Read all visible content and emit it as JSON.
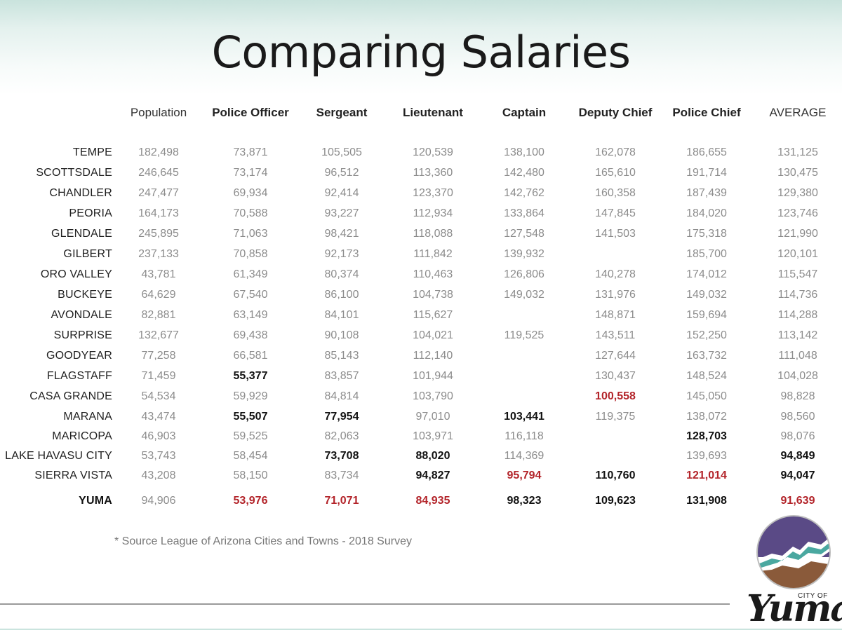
{
  "title": "Comparing Salaries",
  "columns": [
    "Population",
    "Police Officer",
    "Sergeant",
    "Lieutenant",
    "Captain",
    "Deputy Chief",
    "Police Chief",
    "AVERAGE"
  ],
  "rows": [
    {
      "city": "TEMPE",
      "values": [
        "182,498",
        "73,871",
        "105,505",
        "120,539",
        "138,100",
        "162,078",
        "186,655",
        "131,125"
      ],
      "styles": [
        "",
        "",
        "",
        "",
        "",
        "",
        "",
        ""
      ]
    },
    {
      "city": "SCOTTSDALE",
      "values": [
        "246,645",
        "73,174",
        "96,512",
        "113,360",
        "142,480",
        "165,610",
        "191,714",
        "130,475"
      ],
      "styles": [
        "",
        "",
        "",
        "",
        "",
        "",
        "",
        ""
      ]
    },
    {
      "city": "CHANDLER",
      "values": [
        "247,477",
        "69,934",
        "92,414",
        "123,370",
        "142,762",
        "160,358",
        "187,439",
        "129,380"
      ],
      "styles": [
        "",
        "",
        "",
        "",
        "",
        "",
        "",
        ""
      ]
    },
    {
      "city": "PEORIA",
      "values": [
        "164,173",
        "70,588",
        "93,227",
        "112,934",
        "133,864",
        "147,845",
        "184,020",
        "123,746"
      ],
      "styles": [
        "",
        "",
        "",
        "",
        "",
        "",
        "",
        ""
      ]
    },
    {
      "city": "GLENDALE",
      "values": [
        "245,895",
        "71,063",
        "98,421",
        "118,088",
        "127,548",
        "141,503",
        "175,318",
        "121,990"
      ],
      "styles": [
        "",
        "",
        "",
        "",
        "",
        "",
        "",
        ""
      ]
    },
    {
      "city": "GILBERT",
      "values": [
        "237,133",
        "70,858",
        "92,173",
        "111,842",
        "139,932",
        "",
        "185,700",
        "120,101"
      ],
      "styles": [
        "",
        "",
        "",
        "",
        "",
        "",
        "",
        ""
      ]
    },
    {
      "city": "ORO VALLEY",
      "values": [
        "43,781",
        "61,349",
        "80,374",
        "110,463",
        "126,806",
        "140,278",
        "174,012",
        "115,547"
      ],
      "styles": [
        "",
        "",
        "",
        "",
        "",
        "",
        "",
        ""
      ]
    },
    {
      "city": "BUCKEYE",
      "values": [
        "64,629",
        "67,540",
        "86,100",
        "104,738",
        "149,032",
        "131,976",
        "149,032",
        "114,736"
      ],
      "styles": [
        "",
        "",
        "",
        "",
        "",
        "",
        "",
        ""
      ]
    },
    {
      "city": "AVONDALE",
      "values": [
        "82,881",
        "63,149",
        "84,101",
        "115,627",
        "",
        "148,871",
        "159,694",
        "114,288"
      ],
      "styles": [
        "",
        "",
        "",
        "",
        "",
        "",
        "",
        ""
      ]
    },
    {
      "city": "SURPRISE",
      "values": [
        "132,677",
        "69,438",
        "90,108",
        "104,021",
        "119,525",
        "143,511",
        "152,250",
        "113,142"
      ],
      "styles": [
        "",
        "",
        "",
        "",
        "",
        "",
        "",
        ""
      ]
    },
    {
      "city": "GOODYEAR",
      "values": [
        "77,258",
        "66,581",
        "85,143",
        "112,140",
        "",
        "127,644",
        "163,732",
        "111,048"
      ],
      "styles": [
        "",
        "",
        "",
        "",
        "",
        "",
        "",
        ""
      ]
    },
    {
      "city": "FLAGSTAFF",
      "values": [
        "71,459",
        "55,377",
        "83,857",
        "101,944",
        "",
        "130,437",
        "148,524",
        "104,028"
      ],
      "styles": [
        "",
        "b",
        "",
        "",
        "",
        "",
        "",
        ""
      ]
    },
    {
      "city": "CASA GRANDE",
      "values": [
        "54,534",
        "59,929",
        "84,814",
        "103,790",
        "",
        "100,558",
        "145,050",
        "98,828"
      ],
      "styles": [
        "",
        "",
        "",
        "",
        "",
        "r",
        "",
        ""
      ]
    },
    {
      "city": "MARANA",
      "values": [
        "43,474",
        "55,507",
        "77,954",
        "97,010",
        "103,441",
        "119,375",
        "138,072",
        "98,560"
      ],
      "styles": [
        "",
        "b",
        "b",
        "",
        "b",
        "",
        "",
        ""
      ]
    },
    {
      "city": "MARICOPA",
      "values": [
        "46,903",
        "59,525",
        "82,063",
        "103,971",
        "116,118",
        "",
        "128,703",
        "98,076"
      ],
      "styles": [
        "",
        "",
        "",
        "",
        "",
        "",
        "b",
        ""
      ]
    },
    {
      "city": "LAKE HAVASU CITY",
      "values": [
        "53,743",
        "58,454",
        "73,708",
        "88,020",
        "114,369",
        "",
        "139,693",
        "94,849"
      ],
      "styles": [
        "",
        "",
        "b",
        "b",
        "",
        "",
        "",
        "b"
      ]
    },
    {
      "city": "SIERRA VISTA",
      "values": [
        "43,208",
        "58,150",
        "83,734",
        "94,827",
        "95,794",
        "110,760",
        "121,014",
        "94,047"
      ],
      "styles": [
        "",
        "",
        "",
        "b",
        "r",
        "b",
        "r",
        "b"
      ]
    },
    {
      "city": "YUMA",
      "values": [
        "94,906",
        "53,976",
        "71,071",
        "84,935",
        "98,323",
        "109,623",
        "131,908",
        "91,639"
      ],
      "styles": [
        "",
        "r",
        "r",
        "r",
        "b",
        "b",
        "b",
        "r"
      ]
    }
  ],
  "source_note": "* Source League of Arizona Cities and Towns - 2018 Survey",
  "logo": {
    "small_text": "CITY OF",
    "main_text": "Yuma",
    "icon": "city-of-yuma-seal-icon",
    "colors": {
      "sky": "#5a4a86",
      "river": "#4aa8a0",
      "mesa": "#8a5a3a"
    }
  }
}
